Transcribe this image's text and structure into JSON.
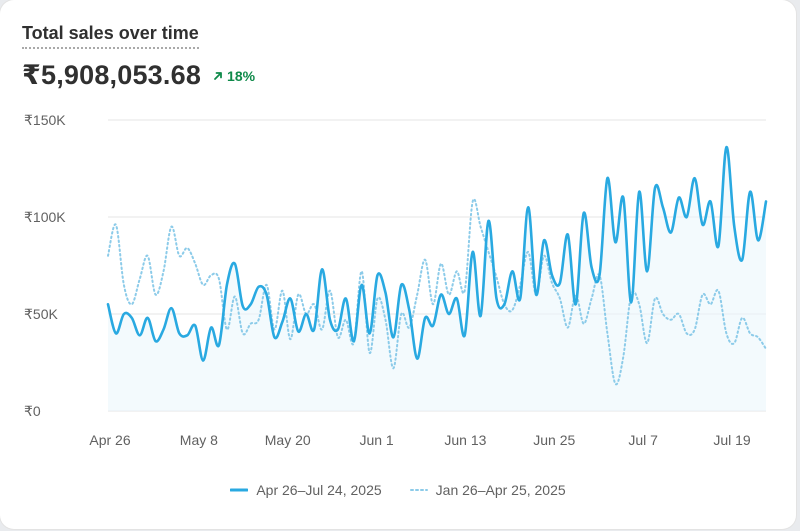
{
  "card": {
    "title": "Total sales over time",
    "total": "₹5,908,053.68",
    "change": "18%",
    "change_icon": "arrow-up-right-icon"
  },
  "colors": {
    "current": "#29a9e1",
    "previous": "#8ccbe9",
    "fill": "#eaf6fc",
    "grid": "#e6e6e6",
    "positive": "#0f8a4a"
  },
  "chart_data": {
    "type": "line",
    "title": "Total sales over time",
    "xlabel": "",
    "ylabel": "",
    "ylim": [
      0,
      150000
    ],
    "yticks": [
      0,
      50000,
      100000,
      150000
    ],
    "ytick_labels": [
      "₹0",
      "₹50K",
      "₹100K",
      "₹150K"
    ],
    "xtick_labels": [
      "Apr 26",
      "May 8",
      "May 20",
      "Jun 1",
      "Jun 13",
      "Jun 25",
      "Jul 7",
      "Jul 19"
    ],
    "grid": true,
    "legend_position": "bottom",
    "series": [
      {
        "name": "Apr 26–Jul 24, 2025",
        "style": "solid",
        "values": [
          55000,
          40000,
          50000,
          48000,
          39000,
          48000,
          36000,
          42000,
          53000,
          40000,
          39000,
          44000,
          26000,
          43000,
          34000,
          65000,
          76000,
          54000,
          55000,
          64000,
          60000,
          38000,
          46000,
          58000,
          41000,
          50000,
          42000,
          73000,
          47000,
          42000,
          58000,
          36000,
          65000,
          40000,
          70000,
          61000,
          38000,
          65000,
          52000,
          27000,
          48000,
          44000,
          60000,
          50000,
          58000,
          39000,
          82000,
          49000,
          98000,
          58000,
          55000,
          72000,
          58000,
          105000,
          60000,
          88000,
          70000,
          66000,
          91000,
          55000,
          102000,
          74000,
          70000,
          120000,
          87000,
          110000,
          56000,
          113000,
          72000,
          115000,
          105000,
          92000,
          110000,
          100000,
          120000,
          96000,
          108000,
          85000,
          136000,
          95000,
          78000,
          113000,
          88000,
          108000
        ]
      },
      {
        "name": "Jan 26–Apr 25, 2025",
        "style": "dotted",
        "values": [
          80000,
          96000,
          65000,
          55000,
          68000,
          80000,
          60000,
          72000,
          95000,
          80000,
          84000,
          76000,
          65000,
          70000,
          68000,
          42000,
          59000,
          40000,
          45000,
          47000,
          65000,
          42000,
          62000,
          37000,
          60000,
          50000,
          55000,
          42000,
          62000,
          38000,
          47000,
          35000,
          72000,
          30000,
          58000,
          47000,
          22000,
          50000,
          43000,
          60000,
          78000,
          55000,
          76000,
          60000,
          72000,
          62000,
          108000,
          95000,
          82000,
          69000,
          55000,
          52000,
          65000,
          82000,
          60000,
          80000,
          66000,
          58000,
          43000,
          60000,
          45000,
          58000,
          70000,
          40000,
          14000,
          28000,
          60000,
          55000,
          35000,
          58000,
          50000,
          47000,
          50000,
          40000,
          42000,
          60000,
          55000,
          62000,
          40000,
          35000,
          48000,
          40000,
          38000,
          32000
        ]
      }
    ]
  }
}
